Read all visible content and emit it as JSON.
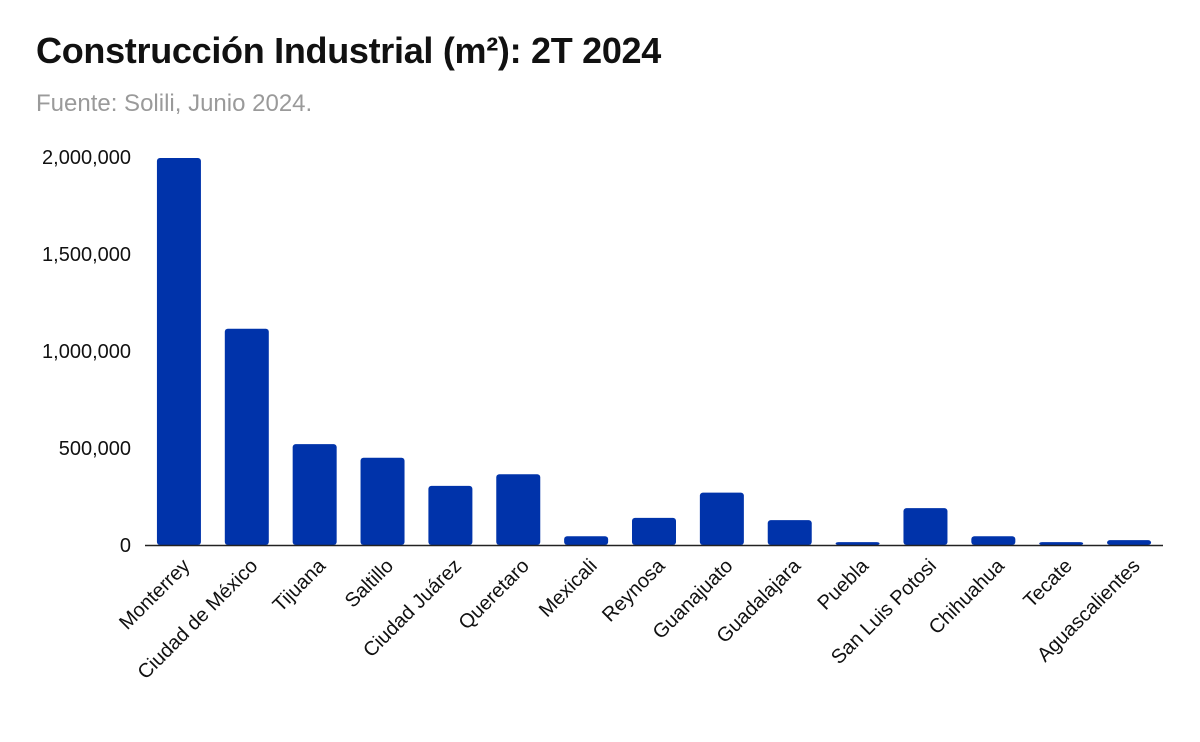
{
  "header": {
    "title": "Construcción Industrial (m²): 2T 2024",
    "subtitle": "Fuente: Solili, Junio 2024."
  },
  "colors": {
    "bar": "#0033AA",
    "axis": "#222222",
    "text": "#111111",
    "subtitle": "#9A9A9A"
  },
  "chart_data": {
    "type": "bar",
    "title": "Construcción Industrial (m²): 2T 2024",
    "xlabel": "",
    "ylabel": "",
    "categories": [
      "Monterrey",
      "Ciudad de México",
      "Tijuana",
      "Saltillo",
      "Ciudad Juárez",
      "Queretaro",
      "Mexicali",
      "Reynosa",
      "Guanajuato",
      "Guadalajara",
      "Puebla",
      "San Luis Potosi",
      "Chihuahua",
      "Tecate",
      "Aguascalientes"
    ],
    "values": [
      1995000,
      1115000,
      520000,
      450000,
      305000,
      365000,
      45000,
      140000,
      270000,
      128000,
      15000,
      190000,
      45000,
      15000,
      25000
    ],
    "ylim": [
      0,
      2000000
    ],
    "yticks": [
      0,
      500000,
      1000000,
      1500000,
      2000000
    ],
    "ytick_labels": [
      "0",
      "500,000",
      "1,000,000",
      "1,500,000",
      "2,000,000"
    ],
    "grid": false,
    "legend": "none"
  }
}
